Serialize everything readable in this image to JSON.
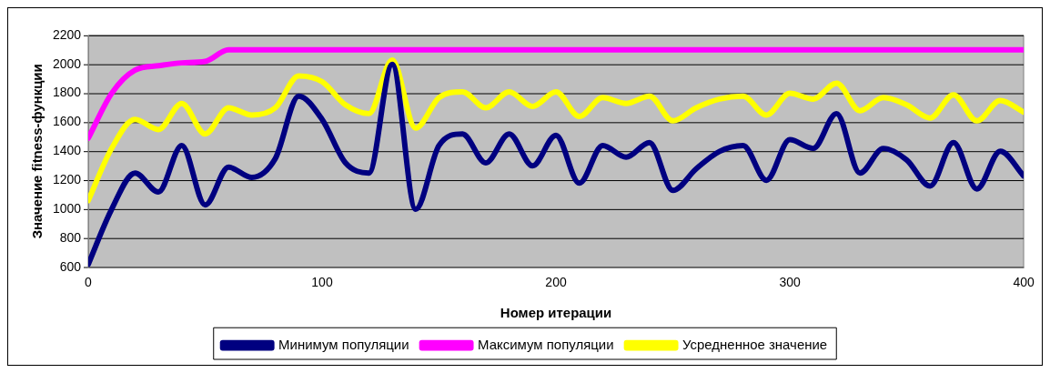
{
  "chart_data": {
    "type": "line",
    "xlabel": "Номер итерации",
    "ylabel": "Значение fitness-функции",
    "x": [
      0,
      10,
      20,
      30,
      40,
      50,
      60,
      70,
      80,
      90,
      100,
      110,
      120,
      130,
      140,
      150,
      160,
      170,
      180,
      190,
      200,
      210,
      220,
      230,
      240,
      250,
      260,
      270,
      280,
      290,
      300,
      310,
      320,
      330,
      340,
      350,
      360,
      370,
      380,
      390,
      400
    ],
    "series": [
      {
        "name": "Минимум популяции",
        "color": "#000080",
        "values": [
          620,
          1000,
          1250,
          1120,
          1440,
          1030,
          1290,
          1220,
          1350,
          1780,
          1620,
          1320,
          1250,
          2000,
          1000,
          1440,
          1520,
          1320,
          1520,
          1300,
          1510,
          1180,
          1440,
          1360,
          1460,
          1130,
          1280,
          1400,
          1440,
          1200,
          1480,
          1420,
          1660,
          1250,
          1420,
          1340,
          1160,
          1460,
          1140,
          1400,
          1230
        ]
      },
      {
        "name": "Максимум популяции",
        "color": "#ff00ff",
        "values": [
          1490,
          1800,
          1960,
          1990,
          2010,
          2020,
          2100,
          2100,
          2100,
          2100,
          2100,
          2100,
          2100,
          2100,
          2100,
          2100,
          2100,
          2100,
          2100,
          2100,
          2100,
          2100,
          2100,
          2100,
          2100,
          2100,
          2100,
          2100,
          2100,
          2100,
          2100,
          2100,
          2100,
          2100,
          2100,
          2100,
          2100,
          2100,
          2100,
          2100,
          2100
        ]
      },
      {
        "name": "Усредненное значение",
        "color": "#ffff00",
        "values": [
          1060,
          1420,
          1620,
          1550,
          1730,
          1520,
          1700,
          1650,
          1700,
          1920,
          1880,
          1720,
          1660,
          2030,
          1560,
          1770,
          1810,
          1700,
          1810,
          1710,
          1810,
          1640,
          1770,
          1730,
          1780,
          1610,
          1700,
          1760,
          1780,
          1650,
          1800,
          1760,
          1870,
          1680,
          1770,
          1720,
          1630,
          1790,
          1610,
          1750,
          1670
        ]
      }
    ],
    "xlim": [
      0,
      400
    ],
    "xticks": [
      0,
      100,
      200,
      300,
      400
    ],
    "ylim": [
      600,
      2200
    ],
    "yticks": [
      600,
      800,
      1000,
      1200,
      1400,
      1600,
      1800,
      2000,
      2200
    ],
    "grid": "y",
    "legend": "bottom",
    "marker": "none",
    "line_style": "solid"
  }
}
